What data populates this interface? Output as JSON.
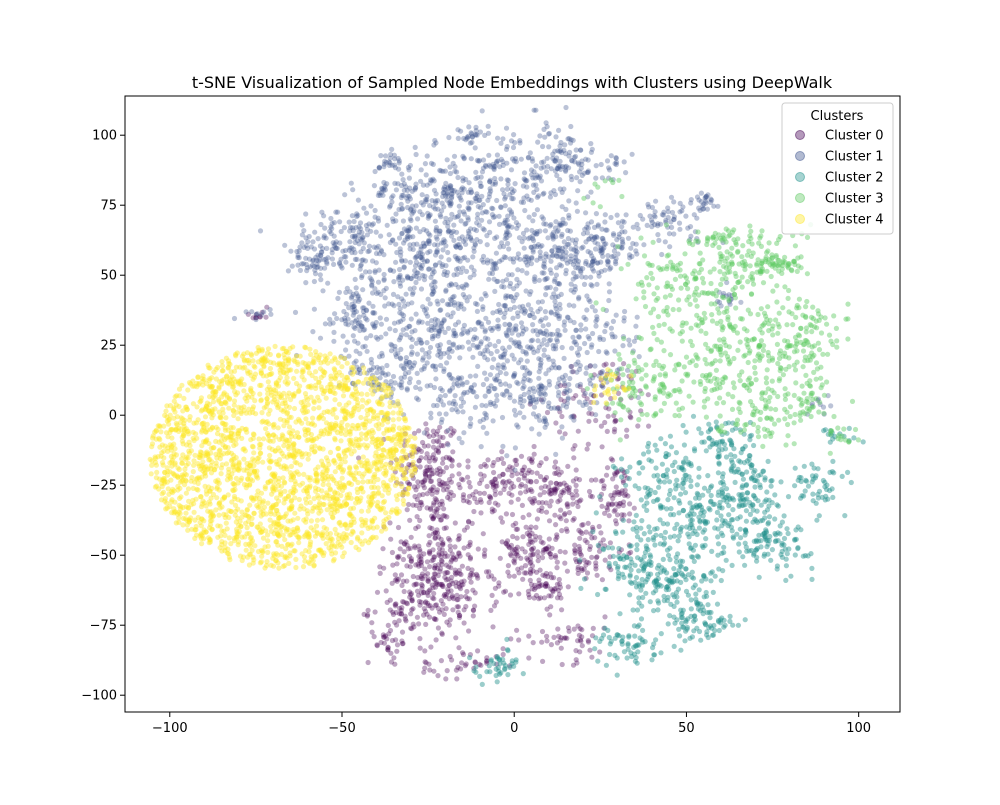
{
  "chart_data": {
    "type": "scatter",
    "title": "t-SNE Visualization of Sampled Node Embeddings with Clusters using DeepWalk",
    "xlabel": "",
    "ylabel": "",
    "xlim": [
      -113,
      112
    ],
    "ylim": [
      -106,
      114
    ],
    "xticks": [
      -100,
      -50,
      0,
      50,
      100
    ],
    "yticks": [
      -100,
      -75,
      -50,
      -25,
      0,
      25,
      50,
      75,
      100
    ],
    "grid": false,
    "legend": {
      "title": "Clusters",
      "placement": "top-right"
    },
    "series": [
      {
        "name": "Cluster 0",
        "color": "#440154",
        "alpha": 0.35,
        "blobs": [
          {
            "cx": -25,
            "cy": -20,
            "sx": 5,
            "sy": 10,
            "n": 170
          },
          {
            "cx": -23,
            "cy": -48,
            "sx": 6,
            "sy": 8,
            "n": 150
          },
          {
            "cx": -30,
            "cy": -68,
            "sx": 6,
            "sy": 8,
            "n": 120
          },
          {
            "cx": -17,
            "cy": -63,
            "sx": 6,
            "sy": 6,
            "n": 120
          },
          {
            "cx": -5,
            "cy": -25,
            "sx": 7,
            "sy": 6,
            "n": 130
          },
          {
            "cx": 3,
            "cy": -48,
            "sx": 5,
            "sy": 5,
            "n": 80
          },
          {
            "cx": 12,
            "cy": -28,
            "sx": 6,
            "sy": 7,
            "n": 110
          },
          {
            "cx": 20,
            "cy": -48,
            "sx": 6,
            "sy": 6,
            "n": 90
          },
          {
            "cx": 8,
            "cy": -62,
            "sx": 4,
            "sy": 4,
            "n": 60
          },
          {
            "cx": 30,
            "cy": -28,
            "sx": 3,
            "sy": 6,
            "n": 60
          },
          {
            "cx": 26,
            "cy": 5,
            "sx": 8,
            "sy": 8,
            "n": 80
          },
          {
            "cx": 15,
            "cy": -80,
            "sx": 8,
            "sy": 4,
            "n": 50
          },
          {
            "cx": -15,
            "cy": -88,
            "sx": 6,
            "sy": 3,
            "n": 40
          },
          {
            "cx": -36,
            "cy": -82,
            "sx": 2,
            "sy": 3,
            "n": 20
          },
          {
            "cx": -74,
            "cy": 36,
            "sx": 2,
            "sy": 1,
            "n": 10
          }
        ]
      },
      {
        "name": "Cluster 1",
        "color": "#3b528b",
        "alpha": 0.35,
        "blobs": [
          {
            "cx": -25,
            "cy": 78,
            "sx": 10,
            "sy": 8,
            "n": 220
          },
          {
            "cx": 0,
            "cy": 85,
            "sx": 10,
            "sy": 10,
            "n": 200
          },
          {
            "cx": 15,
            "cy": 92,
            "sx": 5,
            "sy": 5,
            "n": 70
          },
          {
            "cx": -8,
            "cy": 60,
            "sx": 12,
            "sy": 10,
            "n": 220
          },
          {
            "cx": -28,
            "cy": 50,
            "sx": 10,
            "sy": 10,
            "n": 180
          },
          {
            "cx": -48,
            "cy": 63,
            "sx": 8,
            "sy": 6,
            "n": 130
          },
          {
            "cx": -58,
            "cy": 55,
            "sx": 4,
            "sy": 3,
            "n": 50
          },
          {
            "cx": -45,
            "cy": 35,
            "sx": 6,
            "sy": 8,
            "n": 110
          },
          {
            "cx": -25,
            "cy": 25,
            "sx": 10,
            "sy": 10,
            "n": 180
          },
          {
            "cx": 0,
            "cy": 30,
            "sx": 10,
            "sy": 10,
            "n": 200
          },
          {
            "cx": 15,
            "cy": 55,
            "sx": 8,
            "sy": 7,
            "n": 140
          },
          {
            "cx": 25,
            "cy": 60,
            "sx": 7,
            "sy": 5,
            "n": 100
          },
          {
            "cx": 10,
            "cy": 10,
            "sx": 10,
            "sy": 7,
            "n": 140
          },
          {
            "cx": -10,
            "cy": 5,
            "sx": 10,
            "sy": 7,
            "n": 120
          },
          {
            "cx": 45,
            "cy": 70,
            "sx": 6,
            "sy": 4,
            "n": 70
          },
          {
            "cx": 55,
            "cy": 77,
            "sx": 2,
            "sy": 2,
            "n": 20
          },
          {
            "cx": -40,
            "cy": 15,
            "sx": 5,
            "sy": 5,
            "n": 60
          },
          {
            "cx": -35,
            "cy": 90,
            "sx": 2,
            "sy": 2,
            "n": 20
          },
          {
            "cx": -12,
            "cy": 100,
            "sx": 2,
            "sy": 2,
            "n": 18
          },
          {
            "cx": 30,
            "cy": 90,
            "sx": 2,
            "sy": 2,
            "n": 12
          },
          {
            "cx": 20,
            "cy": 30,
            "sx": 8,
            "sy": 8,
            "n": 100
          },
          {
            "cx": -74,
            "cy": 36,
            "sx": 2,
            "sy": 1,
            "n": 10
          },
          {
            "cx": 62,
            "cy": 42,
            "sx": 2,
            "sy": 2,
            "n": 15
          },
          {
            "cx": 88,
            "cy": 4,
            "sx": 2,
            "sy": 2,
            "n": 10
          }
        ]
      },
      {
        "name": "Cluster 2",
        "color": "#21918c",
        "alpha": 0.45,
        "blobs": [
          {
            "cx": 45,
            "cy": -25,
            "sx": 8,
            "sy": 8,
            "n": 140
          },
          {
            "cx": 55,
            "cy": -40,
            "sx": 6,
            "sy": 6,
            "n": 100
          },
          {
            "cx": 45,
            "cy": -60,
            "sx": 8,
            "sy": 6,
            "n": 150
          },
          {
            "cx": 55,
            "cy": -75,
            "sx": 5,
            "sy": 4,
            "n": 70
          },
          {
            "cx": 35,
            "cy": -50,
            "sx": 6,
            "sy": 6,
            "n": 80
          },
          {
            "cx": 65,
            "cy": -20,
            "sx": 5,
            "sy": 5,
            "n": 70
          },
          {
            "cx": 68,
            "cy": -30,
            "sx": 5,
            "sy": 5,
            "n": 70
          },
          {
            "cx": 75,
            "cy": -45,
            "sx": 6,
            "sy": 5,
            "n": 100
          },
          {
            "cx": 88,
            "cy": -25,
            "sx": 4,
            "sy": 4,
            "n": 50
          },
          {
            "cx": 32,
            "cy": -82,
            "sx": 5,
            "sy": 4,
            "n": 60
          },
          {
            "cx": -5,
            "cy": -90,
            "sx": 4,
            "sy": 3,
            "n": 40
          },
          {
            "cx": 60,
            "cy": -8,
            "sx": 5,
            "sy": 4,
            "n": 50
          },
          {
            "cx": 95,
            "cy": -8,
            "sx": 3,
            "sy": 2,
            "n": 15
          }
        ]
      },
      {
        "name": "Cluster 3",
        "color": "#5ec962",
        "alpha": 0.45,
        "blobs": [
          {
            "cx": 55,
            "cy": 40,
            "sx": 10,
            "sy": 10,
            "n": 150
          },
          {
            "cx": 70,
            "cy": 55,
            "sx": 8,
            "sy": 6,
            "n": 100
          },
          {
            "cx": 78,
            "cy": 54,
            "sx": 3,
            "sy": 2,
            "n": 30
          },
          {
            "cx": 55,
            "cy": 15,
            "sx": 10,
            "sy": 8,
            "n": 120
          },
          {
            "cx": 75,
            "cy": 25,
            "sx": 8,
            "sy": 8,
            "n": 110
          },
          {
            "cx": 85,
            "cy": 30,
            "sx": 4,
            "sy": 6,
            "n": 60
          },
          {
            "cx": 70,
            "cy": 2,
            "sx": 6,
            "sy": 6,
            "n": 70
          },
          {
            "cx": 85,
            "cy": 5,
            "sx": 5,
            "sy": 5,
            "n": 50
          },
          {
            "cx": 35,
            "cy": 10,
            "sx": 6,
            "sy": 6,
            "n": 70
          },
          {
            "cx": 60,
            "cy": 62,
            "sx": 5,
            "sy": 3,
            "n": 40
          },
          {
            "cx": 45,
            "cy": 50,
            "sx": 5,
            "sy": 5,
            "n": 40
          },
          {
            "cx": 95,
            "cy": -8,
            "sx": 3,
            "sy": 2,
            "n": 15
          },
          {
            "cx": 25,
            "cy": 80,
            "sx": 3,
            "sy": 3,
            "n": 10
          }
        ]
      },
      {
        "name": "Cluster 4",
        "color": "#fde725",
        "alpha": 0.45,
        "blobs": [
          {
            "cx": -67,
            "cy": -15,
            "r": 37,
            "n": 2200,
            "shape": "disk"
          },
          {
            "cx": 28,
            "cy": 10,
            "sx": 3,
            "sy": 3,
            "n": 25
          }
        ]
      }
    ]
  }
}
